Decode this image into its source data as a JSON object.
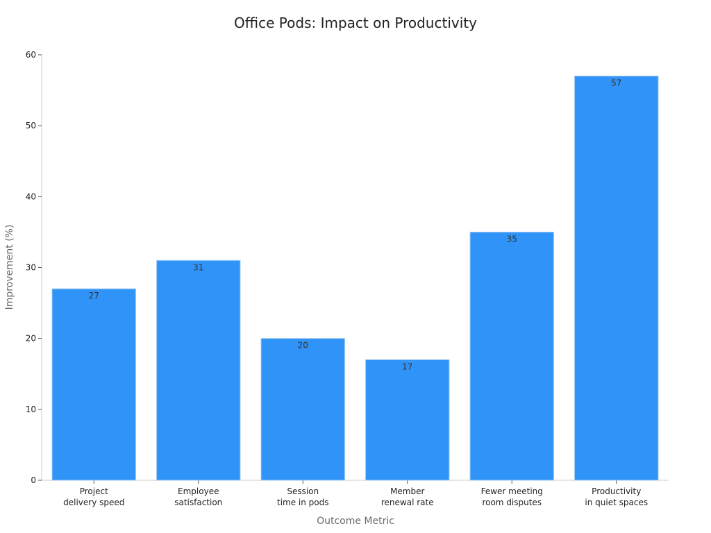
{
  "chart_data": {
    "type": "bar",
    "title": "Office Pods: Impact on Productivity",
    "xlabel": "Outcome Metric",
    "ylabel": "Improvement (%)",
    "ylim": [
      0,
      60
    ],
    "yticks": [
      0,
      10,
      20,
      30,
      40,
      50,
      60
    ],
    "categories": [
      [
        "Project",
        "delivery speed"
      ],
      [
        "Employee",
        "satisfaction"
      ],
      [
        "Session",
        "time in pods"
      ],
      [
        "Member",
        "renewal rate"
      ],
      [
        "Fewer meeting",
        "room disputes"
      ],
      [
        "Productivity",
        "in quiet spaces"
      ]
    ],
    "values": [
      27,
      31,
      20,
      17,
      35,
      57
    ],
    "bar_color": "#2f93f8",
    "grid": false,
    "legend": "none"
  }
}
